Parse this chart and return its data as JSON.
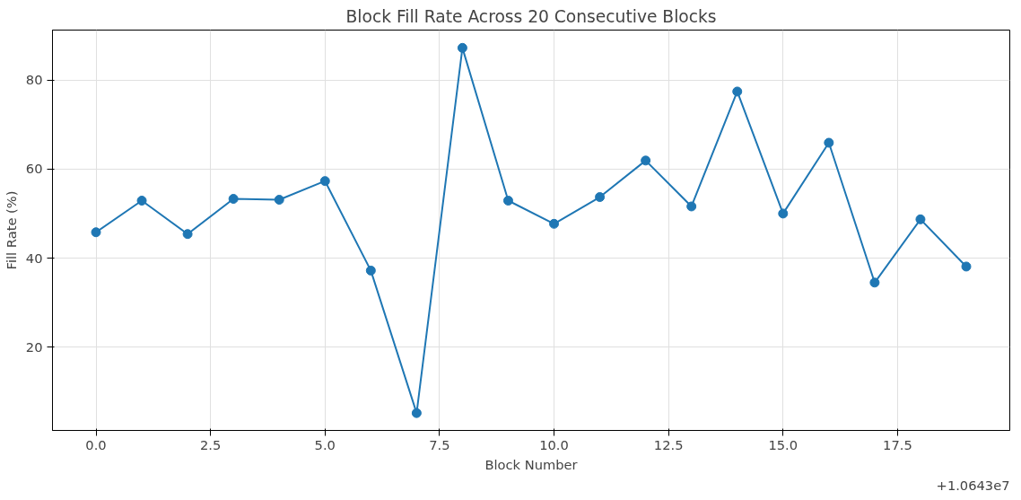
{
  "chart_data": {
    "type": "line",
    "title": "Block Fill Rate Across 20 Consecutive Blocks",
    "xlabel": "Block Number",
    "ylabel": "Fill Rate (%)",
    "annotations": [
      "+1.0643e7"
    ],
    "x": [
      0,
      1,
      2,
      3,
      4,
      5,
      6,
      7,
      8,
      9,
      10,
      11,
      12,
      13,
      14,
      15,
      16,
      17,
      18,
      19
    ],
    "series": [
      {
        "color": "#1f77b4",
        "values": [
          45.8,
          52.9,
          45.4,
          53.3,
          53.1,
          57.3,
          37.2,
          5.2,
          87.2,
          52.9,
          47.7,
          53.7,
          61.9,
          51.6,
          77.4,
          50.0,
          65.9,
          34.5,
          48.7,
          38.1
        ]
      }
    ],
    "xlim": [
      -0.95,
      19.95
    ],
    "ylim": [
      1.3,
      91.2
    ],
    "xticks": [
      {
        "value": 0,
        "label": "0.0"
      },
      2.5,
      {
        "value": 5,
        "label": "5.0"
      },
      7.5,
      {
        "value": 10,
        "label": "10.0"
      },
      12.5,
      {
        "value": 15,
        "label": "15.0"
      },
      17.5
    ],
    "yticks": [
      20,
      40,
      60,
      80
    ],
    "grid": true,
    "marker": "circle",
    "line_style": "solid"
  }
}
